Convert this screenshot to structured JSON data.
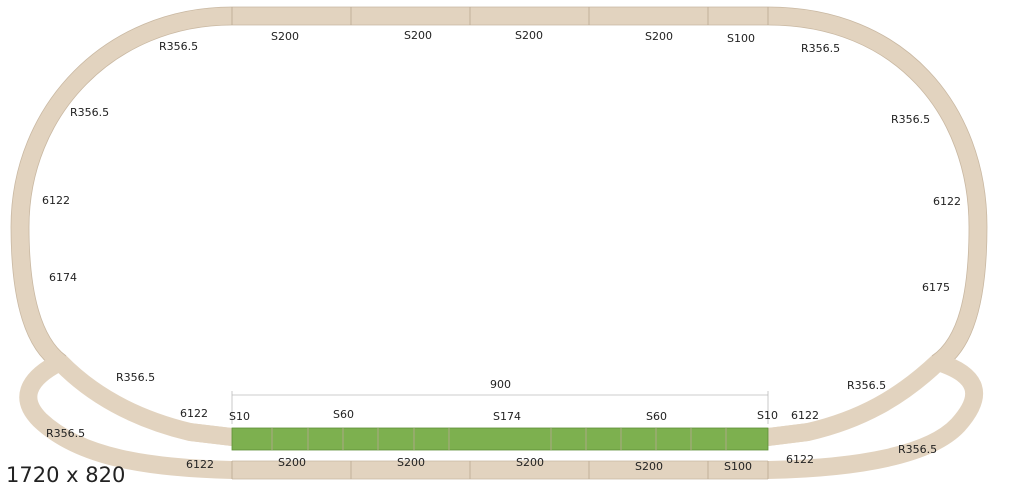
{
  "labels": {
    "top_left_curve": "R356.5",
    "top_s200_1": "S200",
    "top_s200_2": "S200",
    "top_s200_3": "S200",
    "top_s200_4": "S200",
    "top_s100": "S100",
    "top_right_curve": "R356.5",
    "left_curve_upper": "R356.5",
    "left_6122": "6122",
    "left_6174": "6174",
    "right_curve_upper": "R356.5",
    "right_6122": "6122",
    "right_6175": "6175",
    "inner_left_curve": "R356.5",
    "inner_left_6122": "6122",
    "inner_s10_left": "S10",
    "inner_s60_left": "S60",
    "inner_s174": "S174",
    "inner_s60_right": "S60",
    "inner_s10_right": "S10",
    "inner_right_6122": "6122",
    "inner_right_curve": "R356.5",
    "dimension": "900",
    "outer_left_curve": "R356.5",
    "outer_left_6122": "6122",
    "bottom_s200_1": "S200",
    "bottom_s200_2": "S200",
    "bottom_s200_3": "S200",
    "bottom_s200_4": "S200",
    "bottom_s100": "S100",
    "outer_right_6122": "6122",
    "outer_right_curve": "R356.5",
    "size": "1720 x 820"
  },
  "colors": {
    "track": "#e2d3bf",
    "track_edge": "#c9b8a2",
    "platform": "#7db04f",
    "platform_edge": "#5e8f36"
  }
}
